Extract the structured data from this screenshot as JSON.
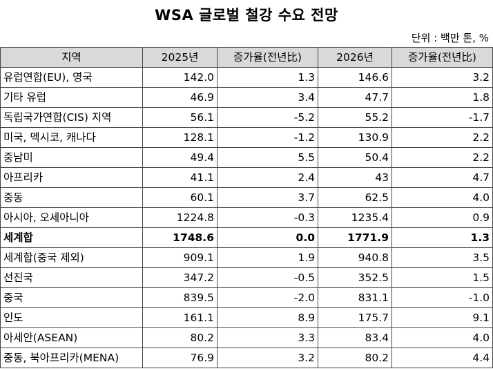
{
  "title": "WSA 글로벌 철강 수요 전망",
  "unit": "단위 : 백만 톤, %",
  "table": {
    "headers": [
      "지역",
      "2025년",
      "증가율(전년比)",
      "2026년",
      "증가율(전년比)"
    ],
    "rows": [
      {
        "region": "유럽연합(EU), 영국",
        "v2025": "142.0",
        "g2025": "1.3",
        "v2026": "146.6",
        "g2026": "3.2",
        "bold": false
      },
      {
        "region": "기타 유럽",
        "v2025": "46.9",
        "g2025": "3.4",
        "v2026": "47.7",
        "g2026": "1.8",
        "bold": false
      },
      {
        "region": "독립국가연합(CIS) 지역",
        "v2025": "56.1",
        "g2025": "-5.2",
        "v2026": "55.2",
        "g2026": "-1.7",
        "bold": false
      },
      {
        "region": "미국, 멕시코, 캐나다",
        "v2025": "128.1",
        "g2025": "-1.2",
        "v2026": "130.9",
        "g2026": "2.2",
        "bold": false
      },
      {
        "region": "중남미",
        "v2025": "49.4",
        "g2025": "5.5",
        "v2026": "50.4",
        "g2026": "2.2",
        "bold": false
      },
      {
        "region": "아프리카",
        "v2025": "41.1",
        "g2025": "2.4",
        "v2026": "43",
        "g2026": "4.7",
        "bold": false
      },
      {
        "region": "중동",
        "v2025": "60.1",
        "g2025": "3.7",
        "v2026": "62.5",
        "g2026": "4.0",
        "bold": false
      },
      {
        "region": "아시아, 오세아니아",
        "v2025": "1224.8",
        "g2025": "-0.3",
        "v2026": "1235.4",
        "g2026": "0.9",
        "bold": false
      },
      {
        "region": "세계합",
        "v2025": "1748.6",
        "g2025": "0.0",
        "v2026": "1771.9",
        "g2026": "1.3",
        "bold": true
      },
      {
        "region": "세계합(중국 제외)",
        "v2025": "909.1",
        "g2025": "1.9",
        "v2026": "940.8",
        "g2026": "3.5",
        "bold": false
      },
      {
        "region": "선진국",
        "v2025": "347.2",
        "g2025": "-0.5",
        "v2026": "352.5",
        "g2026": "1.5",
        "bold": false
      },
      {
        "region": "중국",
        "v2025": "839.5",
        "g2025": "-2.0",
        "v2026": "831.1",
        "g2026": "-1.0",
        "bold": false
      },
      {
        "region": "인도",
        "v2025": "161.1",
        "g2025": "8.9",
        "v2026": "175.7",
        "g2026": "9.1",
        "bold": false
      },
      {
        "region": "아세안(ASEAN)",
        "v2025": "80.2",
        "g2025": "3.3",
        "v2026": "83.4",
        "g2026": "4.0",
        "bold": false
      },
      {
        "region": "중동, 북아프리카(MENA)",
        "v2025": "76.9",
        "g2025": "3.2",
        "v2026": "80.2",
        "g2026": "4.4",
        "bold": false
      }
    ]
  }
}
